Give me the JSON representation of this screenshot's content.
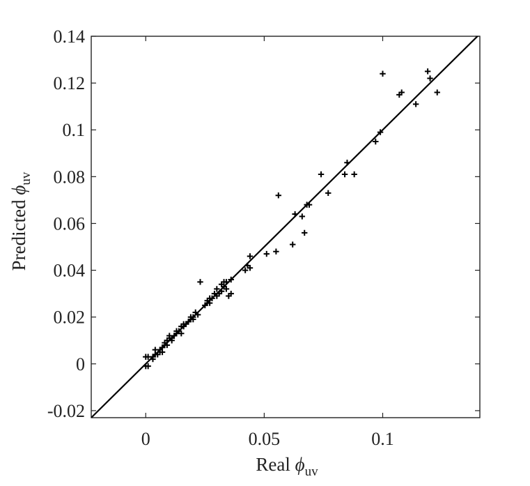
{
  "chart_data": {
    "type": "scatter",
    "xlabel": {
      "text": "Real ",
      "symbol": "ϕ",
      "subscript": "uv"
    },
    "ylabel": {
      "text": "Predicted ",
      "symbol": "ϕ",
      "subscript": "uv"
    },
    "xlim": [
      -0.023,
      0.141
    ],
    "ylim": [
      -0.023,
      0.14
    ],
    "xticks": [
      0,
      0.05,
      0.1
    ],
    "xtick_labels": [
      "0",
      "0.05",
      "0.1"
    ],
    "yticks": [
      -0.02,
      0,
      0.02,
      0.04,
      0.06,
      0.08,
      0.1,
      0.12,
      0.14
    ],
    "ytick_labels": [
      "-0.02",
      "0",
      "0.02",
      "0.04",
      "0.06",
      "0.08",
      "0.1",
      "0.12",
      "0.14"
    ],
    "grid": false,
    "legend": "none",
    "marker": "plus",
    "marker_color": "#000000",
    "line_color": "#000000",
    "reference_line": {
      "type": "y=x",
      "x": [
        -0.023,
        0.141
      ],
      "y": [
        -0.023,
        0.141
      ]
    },
    "series": [
      {
        "points": [
          [
            0.0,
            -0.001
          ],
          [
            0.001,
            -0.001
          ],
          [
            0.0,
            0.003
          ],
          [
            0.001,
            0.003
          ],
          [
            0.003,
            0.003
          ],
          [
            0.003,
            0.002
          ],
          [
            0.004,
            0.004
          ],
          [
            0.004,
            0.006
          ],
          [
            0.005,
            0.004
          ],
          [
            0.006,
            0.005
          ],
          [
            0.006,
            0.006
          ],
          [
            0.007,
            0.007
          ],
          [
            0.007,
            0.005
          ],
          [
            0.008,
            0.008
          ],
          [
            0.008,
            0.009
          ],
          [
            0.009,
            0.01
          ],
          [
            0.009,
            0.008
          ],
          [
            0.01,
            0.011
          ],
          [
            0.01,
            0.012
          ],
          [
            0.011,
            0.01
          ],
          [
            0.011,
            0.011
          ],
          [
            0.012,
            0.012
          ],
          [
            0.013,
            0.013
          ],
          [
            0.013,
            0.014
          ],
          [
            0.014,
            0.014
          ],
          [
            0.015,
            0.013
          ],
          [
            0.015,
            0.016
          ],
          [
            0.016,
            0.016
          ],
          [
            0.016,
            0.017
          ],
          [
            0.017,
            0.017
          ],
          [
            0.018,
            0.018
          ],
          [
            0.019,
            0.019
          ],
          [
            0.019,
            0.02
          ],
          [
            0.02,
            0.019
          ],
          [
            0.02,
            0.02
          ],
          [
            0.021,
            0.022
          ],
          [
            0.022,
            0.021
          ],
          [
            0.023,
            0.035
          ],
          [
            0.025,
            0.025
          ],
          [
            0.026,
            0.026
          ],
          [
            0.026,
            0.027
          ],
          [
            0.027,
            0.026
          ],
          [
            0.027,
            0.028
          ],
          [
            0.028,
            0.028
          ],
          [
            0.029,
            0.03
          ],
          [
            0.03,
            0.029
          ],
          [
            0.03,
            0.032
          ],
          [
            0.031,
            0.03
          ],
          [
            0.032,
            0.031
          ],
          [
            0.032,
            0.034
          ],
          [
            0.033,
            0.033
          ],
          [
            0.033,
            0.035
          ],
          [
            0.034,
            0.032
          ],
          [
            0.034,
            0.035
          ],
          [
            0.035,
            0.029
          ],
          [
            0.036,
            0.03
          ],
          [
            0.036,
            0.036
          ],
          [
            0.042,
            0.04
          ],
          [
            0.043,
            0.042
          ],
          [
            0.044,
            0.041
          ],
          [
            0.044,
            0.046
          ],
          [
            0.051,
            0.047
          ],
          [
            0.055,
            0.048
          ],
          [
            0.056,
            0.072
          ],
          [
            0.062,
            0.051
          ],
          [
            0.063,
            0.064
          ],
          [
            0.066,
            0.063
          ],
          [
            0.067,
            0.056
          ],
          [
            0.068,
            0.068
          ],
          [
            0.069,
            0.068
          ],
          [
            0.074,
            0.081
          ],
          [
            0.077,
            0.073
          ],
          [
            0.084,
            0.081
          ],
          [
            0.085,
            0.086
          ],
          [
            0.088,
            0.081
          ],
          [
            0.097,
            0.095
          ],
          [
            0.099,
            0.099
          ],
          [
            0.1,
            0.124
          ],
          [
            0.107,
            0.115
          ],
          [
            0.108,
            0.116
          ],
          [
            0.114,
            0.111
          ],
          [
            0.119,
            0.125
          ],
          [
            0.12,
            0.122
          ],
          [
            0.123,
            0.116
          ]
        ]
      }
    ]
  }
}
